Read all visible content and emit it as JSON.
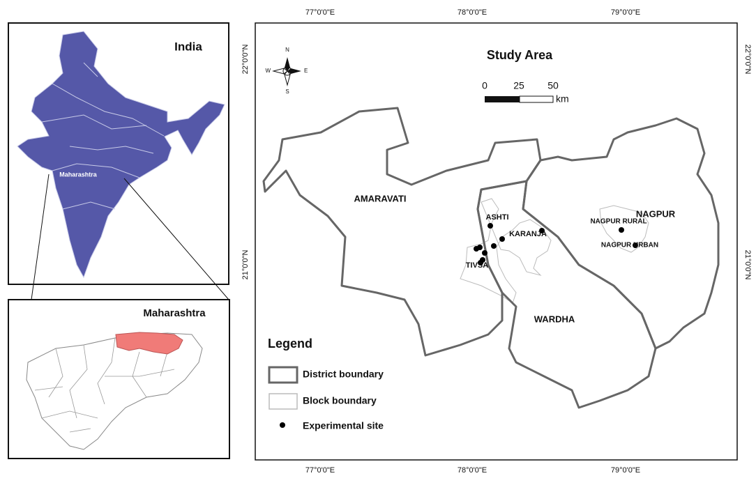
{
  "india_map": {
    "title": "India",
    "state_label": "Maharashtra"
  },
  "inset": {
    "title": "Maharashtra"
  },
  "study_area": {
    "title": "Study Area",
    "scale": {
      "ticks": [
        0,
        25,
        50
      ],
      "unit": "km"
    },
    "north_arrow": {
      "n": "N",
      "s": "S",
      "e": "E",
      "w": "W"
    },
    "longitude_labels_top": [
      "77°0'0\"E",
      "78°0'0\"E",
      "79°0'0\"E"
    ],
    "longitude_labels_bottom": [
      "77°0'0\"E",
      "78°0'0\"E",
      "79°0'0\"E"
    ],
    "latitude_labels_left": [
      "22°0'0\"N",
      "21°0'0\"N"
    ],
    "latitude_labels_right": [
      "22°0'0\"N",
      "21°0'0\"N"
    ],
    "districts": [
      "AMARAVATI",
      "NAGPUR",
      "WARDHA"
    ],
    "blocks": [
      "ASHTI",
      "KARANJA",
      "TIVSA",
      "NAGPUR RURAL",
      "NAGPUR URBAN"
    ]
  },
  "legend": {
    "title": "Legend",
    "items": [
      "District boundary",
      "Block boundary",
      "Experimental site"
    ]
  }
}
